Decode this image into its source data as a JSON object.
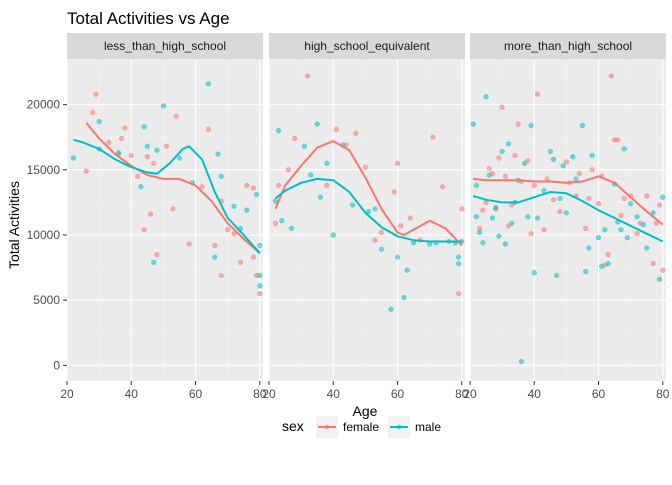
{
  "chart_data": {
    "type": "scatter",
    "title": "Total Activities vs Age",
    "xlabel": "Age",
    "ylabel": "Total Activities",
    "xlim": [
      20,
      81
    ],
    "ylim": [
      -1200,
      23500
    ],
    "xticks": [
      20,
      40,
      60,
      80
    ],
    "yticks": [
      0,
      5000,
      10000,
      15000,
      20000
    ],
    "ytick_labels": [
      "0",
      "5000",
      "10000",
      "15000",
      "20000"
    ],
    "grid": true,
    "legend": {
      "title": "sex",
      "position": "bottom",
      "entries": [
        {
          "label": "female",
          "color": "#F8766D"
        },
        {
          "label": "male",
          "color": "#00BFC4"
        }
      ]
    },
    "colors": {
      "female": "#F8766D",
      "male": "#00BFC4",
      "panel": "#EBEBEB",
      "strip": "#D9D9D9"
    },
    "facets": [
      {
        "label": "less_than_high_school",
        "female_points": [
          [
            26,
            14900
          ],
          [
            28,
            19400
          ],
          [
            29,
            20800
          ],
          [
            33,
            17100
          ],
          [
            36,
            16200
          ],
          [
            37,
            17400
          ],
          [
            38,
            18200
          ],
          [
            40,
            16100
          ],
          [
            42,
            14500
          ],
          [
            44,
            10400
          ],
          [
            45,
            16000
          ],
          [
            46,
            11600
          ],
          [
            47,
            15500
          ],
          [
            48,
            8500
          ],
          [
            51,
            16800
          ],
          [
            53,
            12000
          ],
          [
            54,
            19100
          ],
          [
            58,
            9300
          ],
          [
            62,
            13700
          ],
          [
            64,
            18100
          ],
          [
            66,
            9200
          ],
          [
            68,
            12600
          ],
          [
            68,
            6900
          ],
          [
            70,
            10400
          ],
          [
            72,
            10100
          ],
          [
            74,
            7900
          ],
          [
            76,
            13800
          ],
          [
            78,
            13600
          ],
          [
            78,
            8300
          ],
          [
            79,
            6900
          ],
          [
            80,
            5500
          ]
        ],
        "male_points": [
          [
            22,
            15900
          ],
          [
            30,
            16600
          ],
          [
            30,
            18700
          ],
          [
            36,
            16300
          ],
          [
            43,
            13700
          ],
          [
            44,
            18300
          ],
          [
            45,
            16800
          ],
          [
            47,
            7900
          ],
          [
            48,
            16500
          ],
          [
            50,
            19900
          ],
          [
            55,
            15900
          ],
          [
            59,
            14000
          ],
          [
            64,
            21600
          ],
          [
            66,
            8300
          ],
          [
            67,
            16200
          ],
          [
            68,
            14500
          ],
          [
            72,
            12200
          ],
          [
            74,
            10500
          ],
          [
            76,
            11900
          ],
          [
            79,
            13100
          ],
          [
            80,
            9200
          ],
          [
            80,
            6900
          ],
          [
            80,
            6100
          ]
        ],
        "female_smooth": [
          [
            26,
            18600
          ],
          [
            30,
            17400
          ],
          [
            35,
            16200
          ],
          [
            40,
            15300
          ],
          [
            45,
            14600
          ],
          [
            50,
            14300
          ],
          [
            55,
            14300
          ],
          [
            60,
            13800
          ],
          [
            65,
            12600
          ],
          [
            70,
            10900
          ],
          [
            75,
            9700
          ],
          [
            80,
            8600
          ]
        ],
        "male_smooth": [
          [
            22,
            17300
          ],
          [
            25,
            17100
          ],
          [
            30,
            16600
          ],
          [
            35,
            15800
          ],
          [
            40,
            15200
          ],
          [
            45,
            14800
          ],
          [
            48,
            14700
          ],
          [
            52,
            15500
          ],
          [
            56,
            16600
          ],
          [
            58,
            16800
          ],
          [
            62,
            15800
          ],
          [
            66,
            13300
          ],
          [
            70,
            11300
          ],
          [
            75,
            10000
          ],
          [
            80,
            8600
          ]
        ]
      },
      {
        "label": "high_school_equivalent",
        "female_points": [
          [
            22,
            10900
          ],
          [
            23,
            13800
          ],
          [
            26,
            15000
          ],
          [
            28,
            17400
          ],
          [
            32,
            22200
          ],
          [
            38,
            13800
          ],
          [
            41,
            18100
          ],
          [
            44,
            16900
          ],
          [
            47,
            17800
          ],
          [
            50,
            15200
          ],
          [
            53,
            9600
          ],
          [
            55,
            10200
          ],
          [
            59,
            13300
          ],
          [
            60,
            15500
          ],
          [
            61,
            10700
          ],
          [
            64,
            11300
          ],
          [
            67,
            9600
          ],
          [
            71,
            17500
          ],
          [
            74,
            13700
          ],
          [
            79,
            5500
          ],
          [
            80,
            12000
          ]
        ],
        "male_points": [
          [
            22,
            12600
          ],
          [
            23,
            18000
          ],
          [
            24,
            11100
          ],
          [
            27,
            10500
          ],
          [
            31,
            16800
          ],
          [
            33,
            14600
          ],
          [
            35,
            18500
          ],
          [
            36,
            12900
          ],
          [
            38,
            15500
          ],
          [
            40,
            10000
          ],
          [
            43,
            16900
          ],
          [
            46,
            12300
          ],
          [
            51,
            11800
          ],
          [
            53,
            12000
          ],
          [
            55,
            8900
          ],
          [
            58,
            4300
          ],
          [
            60,
            8300
          ],
          [
            62,
            5200
          ],
          [
            63,
            7300
          ],
          [
            65,
            9400
          ],
          [
            70,
            9300
          ],
          [
            72,
            9400
          ],
          [
            76,
            9500
          ],
          [
            78,
            9400
          ],
          [
            79,
            8300
          ],
          [
            79,
            7800
          ],
          [
            80,
            9500
          ]
        ],
        "female_smooth": [
          [
            22,
            12000
          ],
          [
            25,
            13800
          ],
          [
            30,
            15300
          ],
          [
            35,
            16700
          ],
          [
            40,
            17200
          ],
          [
            45,
            16500
          ],
          [
            50,
            14400
          ],
          [
            55,
            12000
          ],
          [
            60,
            10200
          ],
          [
            62,
            10000
          ],
          [
            65,
            10400
          ],
          [
            70,
            11100
          ],
          [
            75,
            10500
          ],
          [
            80,
            9200
          ]
        ],
        "male_smooth": [
          [
            22,
            12800
          ],
          [
            25,
            13400
          ],
          [
            30,
            14000
          ],
          [
            35,
            14300
          ],
          [
            40,
            14200
          ],
          [
            45,
            13300
          ],
          [
            50,
            11700
          ],
          [
            55,
            10600
          ],
          [
            60,
            9900
          ],
          [
            65,
            9600
          ],
          [
            70,
            9500
          ],
          [
            80,
            9500
          ]
        ]
      },
      {
        "label": "more_than_high_school",
        "female_points": [
          [
            23,
            10500
          ],
          [
            24,
            11900
          ],
          [
            25,
            12500
          ],
          [
            26,
            15100
          ],
          [
            27,
            14700
          ],
          [
            28,
            12000
          ],
          [
            29,
            15900
          ],
          [
            30,
            19800
          ],
          [
            31,
            14500
          ],
          [
            32,
            10700
          ],
          [
            33,
            12300
          ],
          [
            34,
            16100
          ],
          [
            35,
            18500
          ],
          [
            36,
            14100
          ],
          [
            38,
            15700
          ],
          [
            39,
            10100
          ],
          [
            40,
            13800
          ],
          [
            41,
            20800
          ],
          [
            43,
            10400
          ],
          [
            44,
            14300
          ],
          [
            46,
            12700
          ],
          [
            48,
            11800
          ],
          [
            50,
            15600
          ],
          [
            51,
            14000
          ],
          [
            53,
            13000
          ],
          [
            54,
            14700
          ],
          [
            56,
            10500
          ],
          [
            57,
            12800
          ],
          [
            58,
            15000
          ],
          [
            60,
            12400
          ],
          [
            61,
            14500
          ],
          [
            62,
            7700
          ],
          [
            63,
            8500
          ],
          [
            64,
            22200
          ],
          [
            65,
            17300
          ],
          [
            66,
            17300
          ],
          [
            67,
            11500
          ],
          [
            68,
            12800
          ],
          [
            70,
            13000
          ],
          [
            72,
            10100
          ],
          [
            73,
            10900
          ],
          [
            75,
            13000
          ],
          [
            77,
            7800
          ],
          [
            78,
            10900
          ],
          [
            79,
            12300
          ],
          [
            80,
            7300
          ]
        ],
        "male_points": [
          [
            21,
            18500
          ],
          [
            22,
            11400
          ],
          [
            22,
            13800
          ],
          [
            23,
            10200
          ],
          [
            24,
            9400
          ],
          [
            25,
            20600
          ],
          [
            26,
            14600
          ],
          [
            27,
            11300
          ],
          [
            28,
            12100
          ],
          [
            29,
            9900
          ],
          [
            30,
            16400
          ],
          [
            31,
            9300
          ],
          [
            32,
            17000
          ],
          [
            33,
            10900
          ],
          [
            34,
            12500
          ],
          [
            35,
            14200
          ],
          [
            36,
            300
          ],
          [
            37,
            15500
          ],
          [
            38,
            11400
          ],
          [
            39,
            18400
          ],
          [
            40,
            7100
          ],
          [
            41,
            11300
          ],
          [
            43,
            13400
          ],
          [
            45,
            16400
          ],
          [
            46,
            15800
          ],
          [
            47,
            6900
          ],
          [
            48,
            12800
          ],
          [
            49,
            15300
          ],
          [
            50,
            11700
          ],
          [
            52,
            16000
          ],
          [
            53,
            14300
          ],
          [
            55,
            18400
          ],
          [
            56,
            7200
          ],
          [
            57,
            9000
          ],
          [
            58,
            16100
          ],
          [
            60,
            9800
          ],
          [
            61,
            7600
          ],
          [
            62,
            10400
          ],
          [
            63,
            7800
          ],
          [
            65,
            13900
          ],
          [
            66,
            11000
          ],
          [
            67,
            10400
          ],
          [
            68,
            16600
          ],
          [
            69,
            9800
          ],
          [
            70,
            12400
          ],
          [
            72,
            11400
          ],
          [
            74,
            10800
          ],
          [
            75,
            9000
          ],
          [
            77,
            11700
          ],
          [
            79,
            6600
          ],
          [
            80,
            12900
          ]
        ],
        "female_smooth": [
          [
            21,
            14300
          ],
          [
            25,
            14200
          ],
          [
            30,
            14200
          ],
          [
            35,
            14200
          ],
          [
            40,
            14100
          ],
          [
            45,
            14100
          ],
          [
            50,
            14000
          ],
          [
            55,
            14100
          ],
          [
            60,
            14500
          ],
          [
            65,
            14000
          ],
          [
            70,
            12900
          ],
          [
            75,
            11800
          ],
          [
            80,
            10800
          ]
        ],
        "male_smooth": [
          [
            21,
            13000
          ],
          [
            25,
            12700
          ],
          [
            30,
            12500
          ],
          [
            35,
            12500
          ],
          [
            40,
            12900
          ],
          [
            45,
            13300
          ],
          [
            50,
            13200
          ],
          [
            55,
            12600
          ],
          [
            60,
            11900
          ],
          [
            65,
            11300
          ],
          [
            70,
            10700
          ],
          [
            75,
            10100
          ],
          [
            80,
            9500
          ]
        ]
      }
    ]
  }
}
